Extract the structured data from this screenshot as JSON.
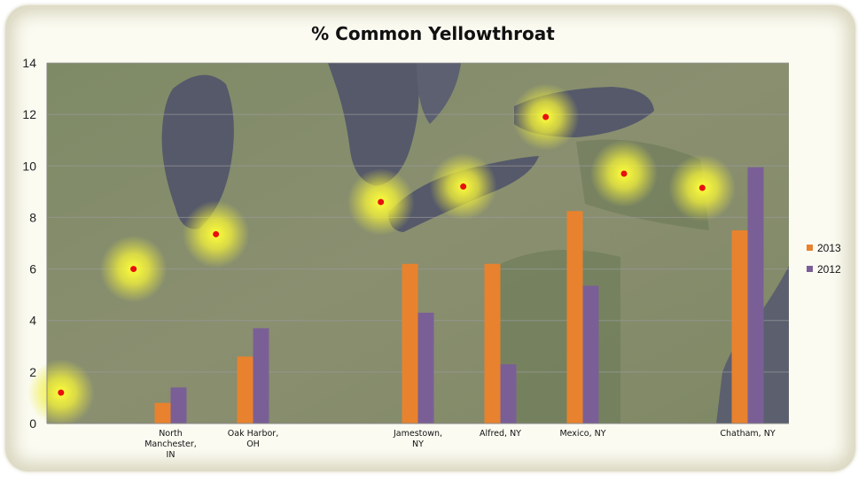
{
  "chart_data": {
    "type": "bar",
    "title": "% Common Yellowthroat",
    "xlabel": "",
    "ylabel": "",
    "ylim": [
      0,
      14
    ],
    "yticks": [
      0,
      2,
      4,
      6,
      8,
      10,
      12,
      14
    ],
    "grid": true,
    "legend_position": "right",
    "background": "satellite map of the Great Lakes region",
    "categories": [
      "",
      "North Manchester, IN",
      "Oak Harbor, OH",
      "",
      "Jamestown, NY",
      "Alfred, NY",
      "Mexico, NY",
      "",
      "Chatham, NY"
    ],
    "category_lines": [
      [
        ""
      ],
      [
        "North",
        "Manchester,",
        "IN"
      ],
      [
        "Oak Harbor,",
        "OH"
      ],
      [
        ""
      ],
      [
        "Jamestown,",
        "NY"
      ],
      [
        "Alfred, NY"
      ],
      [
        "Mexico, NY"
      ],
      [
        ""
      ],
      [
        "Chatham, NY"
      ]
    ],
    "series": [
      {
        "name": "2013",
        "color": "#e8822e",
        "values": [
          null,
          0.8,
          2.6,
          null,
          6.2,
          6.2,
          8.25,
          null,
          7.5
        ]
      },
      {
        "name": "2012",
        "color": "#7a5f96",
        "values": [
          null,
          1.4,
          3.7,
          null,
          4.3,
          2.3,
          5.35,
          null,
          9.95
        ]
      }
    ],
    "map_markers": [
      {
        "x": 0.17,
        "y": 1.2
      },
      {
        "x": 1.05,
        "y": 6.0
      },
      {
        "x": 2.05,
        "y": 7.35
      },
      {
        "x": 4.05,
        "y": 8.6
      },
      {
        "x": 5.05,
        "y": 9.2
      },
      {
        "x": 6.05,
        "y": 11.9
      },
      {
        "x": 7.0,
        "y": 9.7
      },
      {
        "x": 7.95,
        "y": 9.15
      }
    ],
    "marker_color": "#e81010"
  }
}
